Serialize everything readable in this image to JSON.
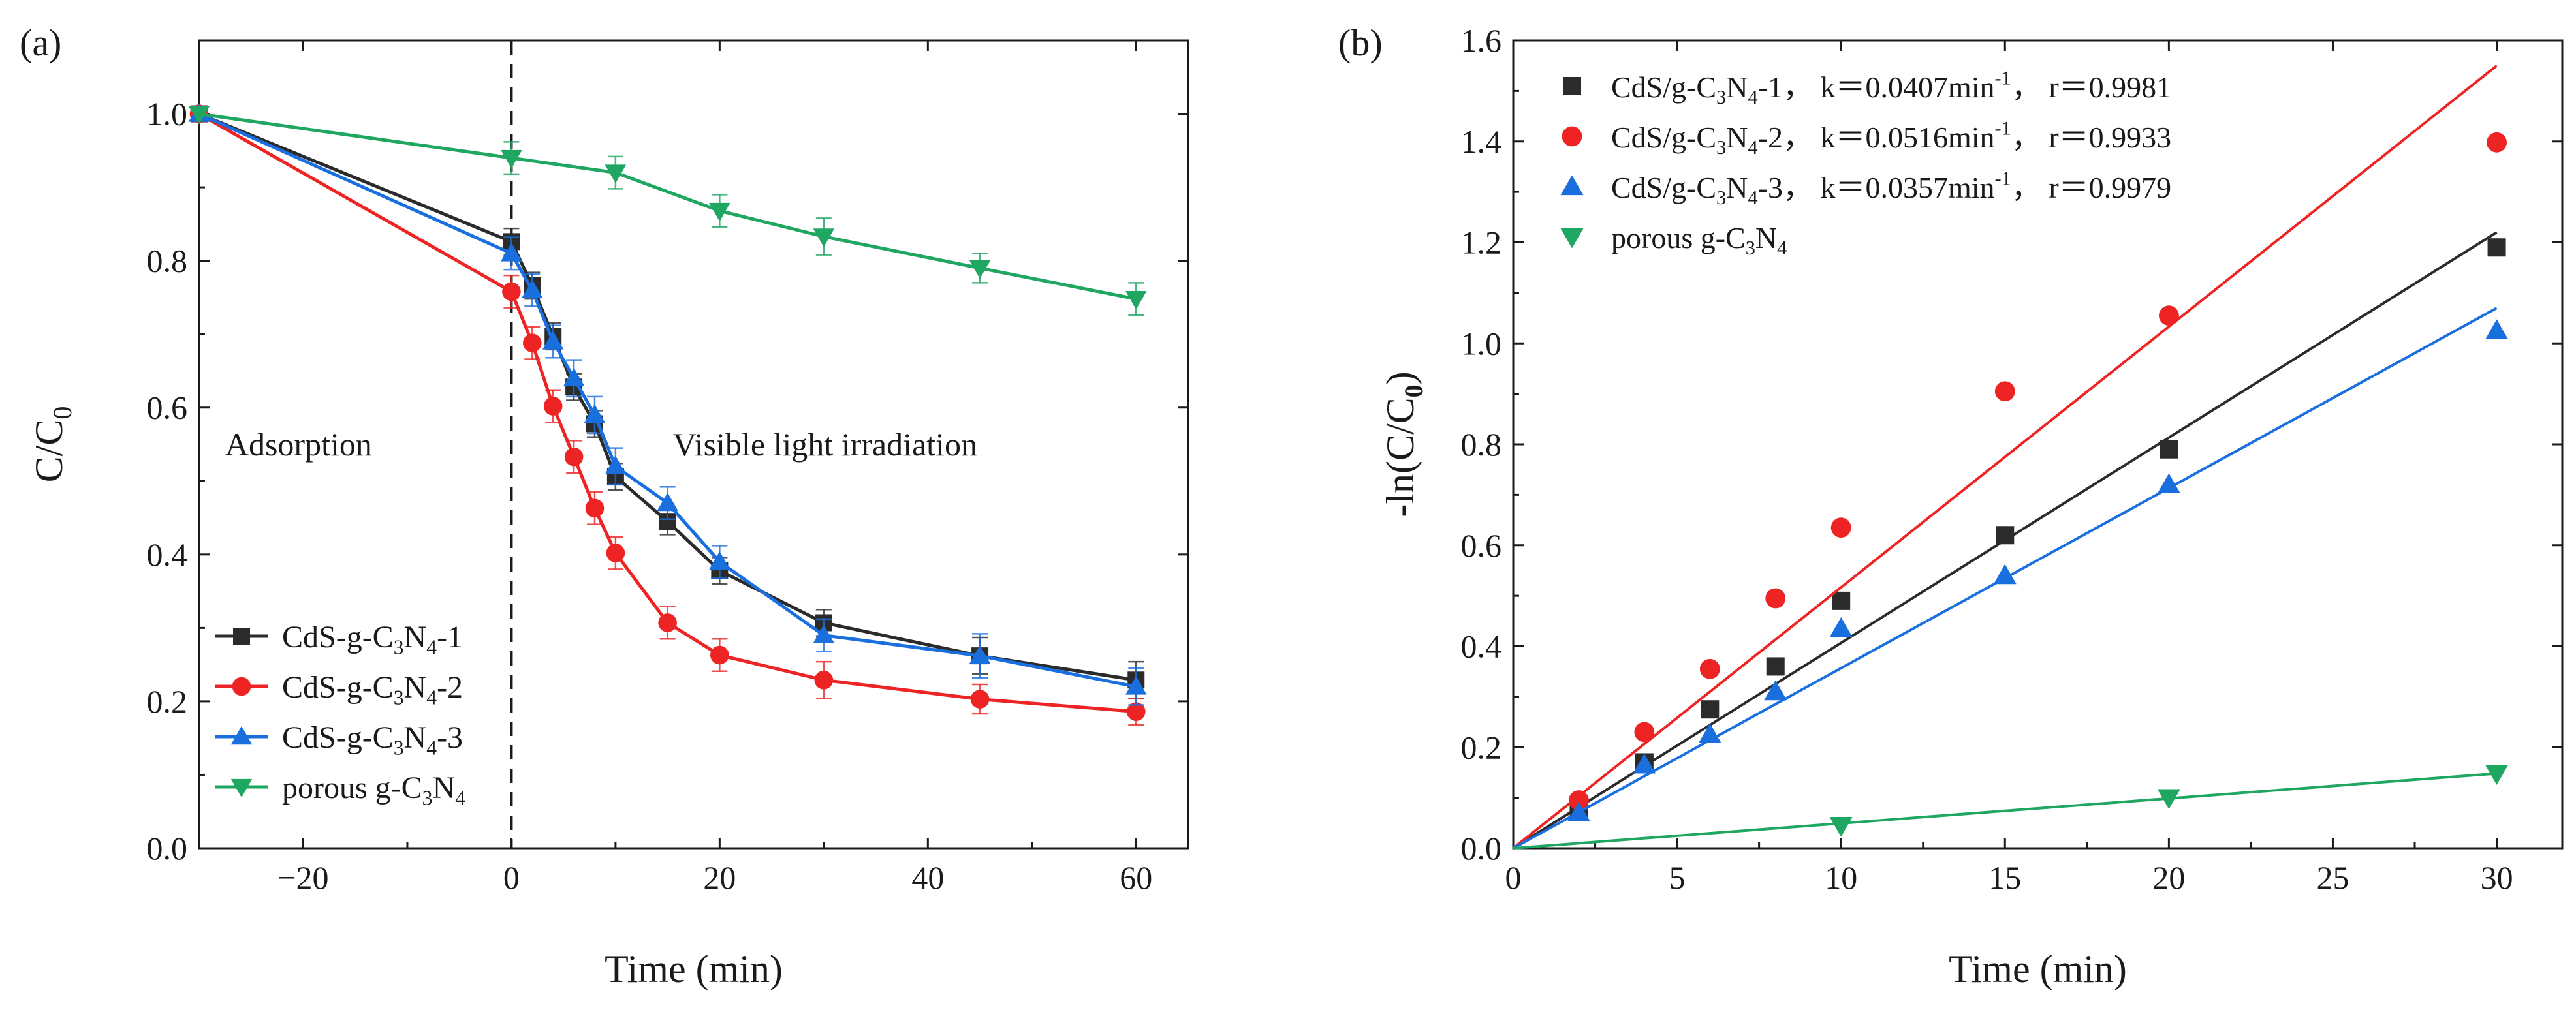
{
  "colors": {
    "cds1": "#2b2b2b",
    "cds2": "#ee2424",
    "cds3": "#1a6fdf",
    "porous": "#1fa661",
    "axis": "#1a1a1a"
  },
  "chart_data": [
    {
      "id": "a",
      "type": "line",
      "panel_label": "(a)",
      "xlabel": "Time (min)",
      "ylabel": "C/C",
      "ylabel_sub": "0",
      "xlim": [
        -30,
        65
      ],
      "ylim": [
        0.0,
        1.1
      ],
      "xticks": [
        -20,
        0,
        20,
        40,
        60
      ],
      "xtick_labels": [
        "−20",
        "0",
        "20",
        "40",
        "60"
      ],
      "yticks": [
        0.0,
        0.2,
        0.4,
        0.6,
        0.8,
        1.0
      ],
      "ytick_labels": [
        "0.0",
        "0.2",
        "0.4",
        "0.6",
        "0.8",
        "1.0"
      ],
      "divider_x": 0,
      "annotations": [
        {
          "id": "adsorption",
          "text": "Adsorption",
          "x": -27.5,
          "y": 0.535
        },
        {
          "id": "visible",
          "text": "Visible light irradiation",
          "x": 15.5,
          "y": 0.535
        }
      ],
      "legend_position": "bottom-left",
      "series": [
        {
          "key": "cds1",
          "marker": "square",
          "legend": {
            "pre": "CdS-g-C",
            "sub1": "3",
            "mid": "N",
            "sub2": "4",
            "post": "-1"
          },
          "x": [
            -30,
            0,
            2,
            4,
            6,
            8,
            10,
            15,
            20,
            30,
            45,
            60
          ],
          "y": [
            1.0,
            0.826,
            0.766,
            0.697,
            0.628,
            0.578,
            0.506,
            0.445,
            0.378,
            0.307,
            0.262,
            0.229
          ],
          "err": [
            0,
            0.018,
            0.018,
            0.018,
            0.018,
            0.018,
            0.018,
            0.018,
            0.018,
            0.018,
            0.025,
            0.025
          ]
        },
        {
          "key": "cds2",
          "marker": "circle",
          "legend": {
            "pre": "CdS-g-C",
            "sub1": "3",
            "mid": "N",
            "sub2": "4",
            "post": "-2"
          },
          "x": [
            -30,
            0,
            2,
            4,
            6,
            8,
            10,
            15,
            20,
            30,
            45,
            60
          ],
          "y": [
            1.0,
            0.758,
            0.688,
            0.602,
            0.533,
            0.463,
            0.402,
            0.307,
            0.263,
            0.229,
            0.203,
            0.186
          ],
          "err": [
            0,
            0.022,
            0.022,
            0.022,
            0.022,
            0.022,
            0.022,
            0.022,
            0.022,
            0.025,
            0.02,
            0.018
          ]
        },
        {
          "key": "cds3",
          "marker": "triangle-up",
          "legend": {
            "pre": "CdS-g-C",
            "sub1": "3",
            "mid": "N",
            "sub2": "4",
            "post": "-3"
          },
          "x": [
            -30,
            0,
            2,
            4,
            6,
            8,
            10,
            15,
            20,
            30,
            45,
            60
          ],
          "y": [
            1.0,
            0.81,
            0.76,
            0.69,
            0.64,
            0.59,
            0.52,
            0.47,
            0.39,
            0.29,
            0.262,
            0.22
          ],
          "err": [
            0,
            0.022,
            0.022,
            0.022,
            0.025,
            0.025,
            0.025,
            0.022,
            0.022,
            0.022,
            0.03,
            0.025
          ]
        },
        {
          "key": "porous",
          "marker": "triangle-down",
          "legend": {
            "pre": "porous g-C",
            "sub1": "3",
            "mid": "N",
            "sub2": "4",
            "post": ""
          },
          "x": [
            -30,
            0,
            10,
            20,
            30,
            45,
            60
          ],
          "y": [
            1.0,
            0.94,
            0.92,
            0.868,
            0.833,
            0.79,
            0.748
          ],
          "err": [
            0,
            0.022,
            0.022,
            0.022,
            0.025,
            0.02,
            0.022
          ]
        }
      ]
    },
    {
      "id": "b",
      "type": "scatter",
      "panel_label": "(b)",
      "xlabel": "Time (min)",
      "ylabel": "-ln(C/C",
      "ylabel_sub": "0",
      "ylabel_end": ")",
      "xlim": [
        0,
        32
      ],
      "ylim": [
        0.0,
        1.6
      ],
      "xticks": [
        0,
        5,
        10,
        15,
        20,
        25,
        30
      ],
      "xtick_labels": [
        "0",
        "5",
        "10",
        "15",
        "20",
        "25",
        "30"
      ],
      "yticks": [
        0.0,
        0.2,
        0.4,
        0.6,
        0.8,
        1.0,
        1.2,
        1.4,
        1.6
      ],
      "ytick_labels": [
        "0.0",
        "0.2",
        "0.4",
        "0.6",
        "0.8",
        "1.0",
        "1.2",
        "1.4",
        "1.6"
      ],
      "legend_position": "top-left",
      "series": [
        {
          "key": "cds1",
          "marker": "square",
          "legend": {
            "pre": "CdS/g-C",
            "sub1": "3",
            "mid": "N",
            "sub2": "4",
            "post": "-1， k＝0.0407min",
            "sup": "-1",
            "tail": "， r＝0.9981"
          },
          "x": [
            2,
            4,
            6,
            8,
            10,
            15,
            20,
            30
          ],
          "y": [
            0.075,
            0.17,
            0.275,
            0.36,
            0.49,
            0.62,
            0.79,
            1.19
          ],
          "fit_x": [
            0,
            30
          ],
          "fit_y": [
            0,
            1.22
          ]
        },
        {
          "key": "cds2",
          "marker": "circle",
          "legend": {
            "pre": "CdS/g-C",
            "sub1": "3",
            "mid": "N",
            "sub2": "4",
            "post": "-2， k＝0.0516min",
            "sup": "-1",
            "tail": "， r＝0.9933"
          },
          "x": [
            2,
            4,
            6,
            8,
            10,
            15,
            20,
            30
          ],
          "y": [
            0.095,
            0.23,
            0.355,
            0.495,
            0.635,
            0.905,
            1.055,
            1.398
          ],
          "fit_x": [
            0,
            30
          ],
          "fit_y": [
            0,
            1.55
          ]
        },
        {
          "key": "cds3",
          "marker": "triangle-up",
          "legend": {
            "pre": "CdS/g-C",
            "sub1": "3",
            "mid": "N",
            "sub2": "4",
            "post": "-3， k＝0.0357min",
            "sup": "-1",
            "tail": "， r＝0.9979"
          },
          "x": [
            2,
            4,
            6,
            8,
            10,
            15,
            20,
            30
          ],
          "y": [
            0.07,
            0.165,
            0.225,
            0.31,
            0.435,
            0.54,
            0.72,
            1.025
          ],
          "fit_x": [
            0,
            30
          ],
          "fit_y": [
            0,
            1.07
          ]
        },
        {
          "key": "porous",
          "marker": "triangle-down",
          "legend": {
            "pre": "porous g-C",
            "sub1": "3",
            "mid": "N",
            "sub2": "4",
            "post": "",
            "sup": "",
            "tail": ""
          },
          "x": [
            10,
            20,
            30
          ],
          "y": [
            0.045,
            0.1,
            0.148
          ],
          "fit_x": [
            0,
            30
          ],
          "fit_y": [
            0,
            0.148
          ]
        }
      ]
    }
  ]
}
